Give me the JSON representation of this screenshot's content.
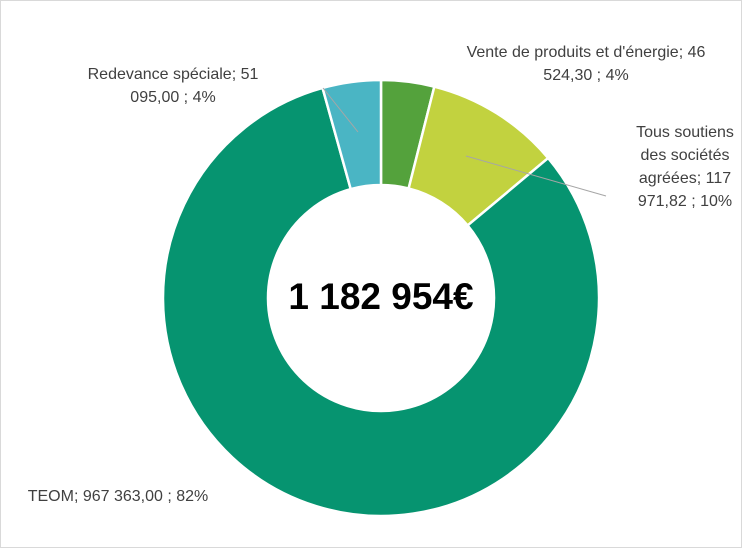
{
  "chart_data": {
    "type": "donut",
    "center_label": "1 182 954€",
    "values": [
      46524.3,
      117971.82,
      967363.0,
      51095.0
    ],
    "value_labels": [
      "Vente de produits et d'énergie; 46 524,30 ; 4%",
      "Tous soutiens des sociétés agréées; 117 971,82 ; 10%",
      "TEOM; 967 363,00 ; 82%",
      "Redevance spéciale; 51 095,00 ; 4%"
    ],
    "colors": [
      "#54a23c",
      "#c2d23f",
      "#069470",
      "#4ab5c4"
    ]
  }
}
